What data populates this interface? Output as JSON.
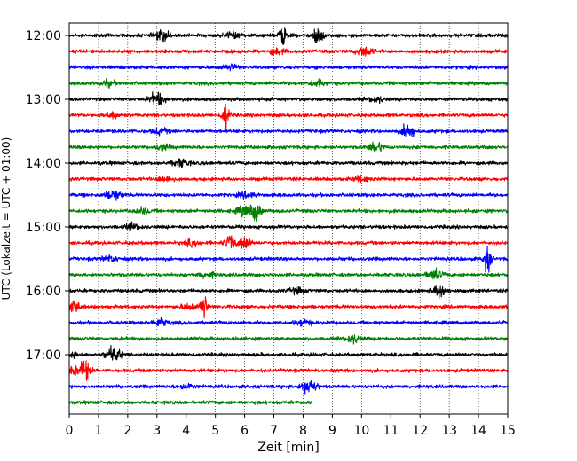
{
  "chart_data": {
    "type": "line",
    "title": "",
    "xlabel": "Zeit  [min]",
    "ylabel": "UTC (Lokalzeit = UTC + 01:00)",
    "xlim": [
      0,
      15
    ],
    "x_ticks": [
      "0",
      "1",
      "2",
      "3",
      "4",
      "5",
      "6",
      "7",
      "8",
      "9",
      "10",
      "11",
      "12",
      "13",
      "14",
      "15"
    ],
    "y_tick_labels": [
      "12:00",
      "13:00",
      "14:00",
      "15:00",
      "16:00",
      "17:00"
    ],
    "grid": "vertical-dotted",
    "trace_interval_minutes": 15,
    "start_time": "12:00",
    "colors_cycle": [
      "#000000",
      "#ff0000",
      "#0000ff",
      "#008000"
    ],
    "traces": [
      {
        "start": "12:00",
        "color": "#000000",
        "end_min": 15,
        "events": [
          [
            3.2,
            0.5
          ],
          [
            7.3,
            1.2
          ],
          [
            8.5,
            0.9
          ],
          [
            5.6,
            0.3
          ]
        ]
      },
      {
        "start": "12:15",
        "color": "#ff0000",
        "end_min": 15,
        "events": [
          [
            10.1,
            0.5
          ],
          [
            7.1,
            0.3
          ]
        ]
      },
      {
        "start": "12:30",
        "color": "#0000ff",
        "end_min": 15,
        "events": [
          [
            5.5,
            0.3
          ]
        ]
      },
      {
        "start": "12:45",
        "color": "#008000",
        "end_min": 15,
        "events": [
          [
            1.3,
            0.3
          ],
          [
            8.5,
            0.3
          ]
        ]
      },
      {
        "start": "13:00",
        "color": "#000000",
        "end_min": 15,
        "events": [
          [
            3.0,
            0.6
          ],
          [
            10.5,
            0.3
          ]
        ]
      },
      {
        "start": "13:15",
        "color": "#ff0000",
        "end_min": 15,
        "events": [
          [
            5.35,
            1.7
          ],
          [
            1.5,
            0.3
          ]
        ]
      },
      {
        "start": "13:30",
        "color": "#0000ff",
        "end_min": 15,
        "events": [
          [
            11.6,
            1.0
          ],
          [
            3.1,
            0.3
          ]
        ]
      },
      {
        "start": "13:45",
        "color": "#008000",
        "end_min": 15,
        "events": [
          [
            3.2,
            0.3
          ],
          [
            10.5,
            0.5
          ]
        ]
      },
      {
        "start": "14:00",
        "color": "#000000",
        "end_min": 15,
        "events": [
          [
            3.8,
            0.4
          ]
        ]
      },
      {
        "start": "14:15",
        "color": "#ff0000",
        "end_min": 15,
        "events": [
          [
            3.3,
            0.3
          ],
          [
            10.0,
            0.3
          ]
        ]
      },
      {
        "start": "14:30",
        "color": "#0000ff",
        "end_min": 15,
        "events": [
          [
            1.5,
            0.5
          ],
          [
            6.1,
            0.3
          ]
        ]
      },
      {
        "start": "14:45",
        "color": "#008000",
        "end_min": 15,
        "events": [
          [
            6.4,
            0.9
          ],
          [
            6.0,
            0.5
          ],
          [
            2.5,
            0.3
          ]
        ]
      },
      {
        "start": "15:00",
        "color": "#000000",
        "end_min": 15,
        "events": [
          [
            2.2,
            0.3
          ]
        ]
      },
      {
        "start": "15:15",
        "color": "#ff0000",
        "end_min": 15,
        "events": [
          [
            5.5,
            0.9
          ],
          [
            6.0,
            0.8
          ],
          [
            4.2,
            0.3
          ]
        ]
      },
      {
        "start": "15:30",
        "color": "#0000ff",
        "end_min": 15,
        "events": [
          [
            14.3,
            1.5
          ],
          [
            1.4,
            0.3
          ]
        ]
      },
      {
        "start": "15:45",
        "color": "#008000",
        "end_min": 15,
        "events": [
          [
            12.5,
            0.5
          ],
          [
            4.7,
            0.3
          ]
        ]
      },
      {
        "start": "16:00",
        "color": "#000000",
        "end_min": 15,
        "events": [
          [
            12.7,
            0.6
          ],
          [
            7.8,
            0.3
          ]
        ]
      },
      {
        "start": "16:15",
        "color": "#ff0000",
        "end_min": 15,
        "events": [
          [
            0.15,
            0.9
          ],
          [
            4.6,
            1.5
          ],
          [
            4.1,
            0.3
          ]
        ]
      },
      {
        "start": "16:30",
        "color": "#0000ff",
        "end_min": 15,
        "events": [
          [
            3.1,
            0.4
          ],
          [
            8.0,
            0.3
          ]
        ]
      },
      {
        "start": "16:45",
        "color": "#008000",
        "end_min": 15,
        "events": [
          [
            9.7,
            0.4
          ]
        ]
      },
      {
        "start": "17:00",
        "color": "#000000",
        "end_min": 15,
        "events": [
          [
            1.5,
            0.7
          ],
          [
            0.0,
            0.4
          ]
        ]
      },
      {
        "start": "17:15",
        "color": "#ff0000",
        "end_min": 15,
        "events": [
          [
            0.55,
            1.0
          ],
          [
            0.2,
            0.5
          ]
        ]
      },
      {
        "start": "17:30",
        "color": "#0000ff",
        "end_min": 15,
        "events": [
          [
            8.2,
            0.7
          ],
          [
            4.0,
            0.3
          ]
        ]
      },
      {
        "start": "17:45",
        "color": "#008000",
        "end_min": 8.3,
        "events": []
      }
    ]
  }
}
